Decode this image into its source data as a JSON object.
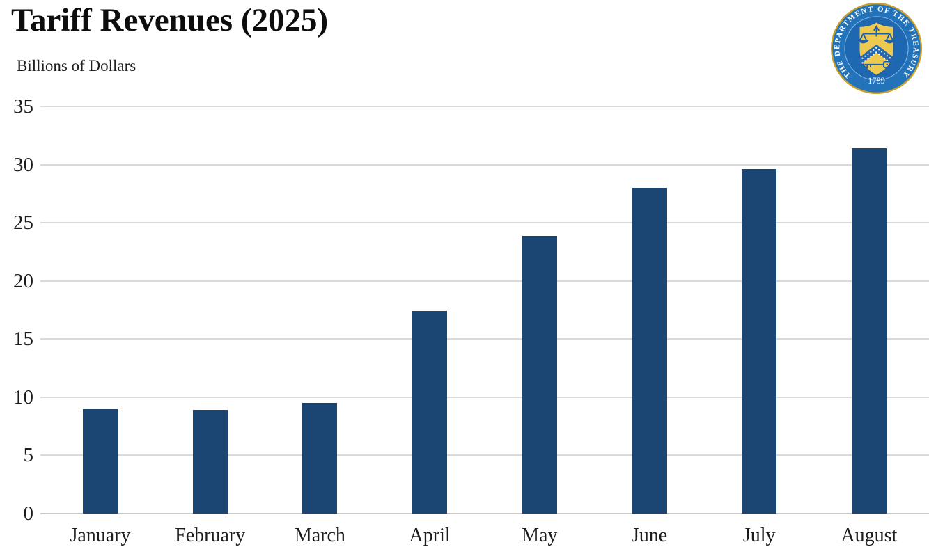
{
  "header": {
    "title": "Tariff Revenues (2025)",
    "subtitle": "Billions of Dollars"
  },
  "seal": {
    "ring_text": "THE DEPARTMENT OF THE TREASURY",
    "year": "1789",
    "colors": {
      "outer_gold": "#c99f2a",
      "ring_blue": "#2373bb",
      "inner_blue": "#1d68b0",
      "shield_gold": "#eec94f",
      "chevron_blue": "#2468b1",
      "emblem_blue": "#1d5fa8",
      "text_white": "#ffffff"
    }
  },
  "chart_data": {
    "type": "bar",
    "title": "Tariff Revenues (2025)",
    "subtitle": "Billions of Dollars",
    "categories": [
      "January",
      "February",
      "March",
      "April",
      "May",
      "June",
      "July",
      "August"
    ],
    "values": [
      9.0,
      8.9,
      9.5,
      17.4,
      23.9,
      28.0,
      29.6,
      31.4
    ],
    "xlabel": "",
    "ylabel": "Billions of Dollars",
    "ylim": [
      0,
      35
    ],
    "yticks": [
      0,
      5,
      10,
      15,
      20,
      25,
      30,
      35
    ],
    "grid": true,
    "legend": "none",
    "bar_color": "#1b4573",
    "gridline_color": "#d9d9d9",
    "zero_line_color": "#c9c9c9"
  }
}
